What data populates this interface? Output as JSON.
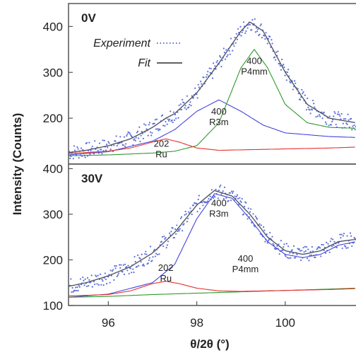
{
  "chart_data": {
    "type": "line",
    "xlabel": "θ/2θ (°)",
    "ylabel": "Intensity (Counts)",
    "xlim": [
      95.1,
      101.6
    ],
    "xticks": [
      96,
      98,
      100
    ],
    "legend": {
      "placement": "top-left",
      "entries": [
        {
          "label": "Experiment",
          "style": "dotted",
          "color": "#5a6fd6"
        },
        {
          "label": "Fit",
          "style": "solid",
          "color": "#000000"
        }
      ]
    },
    "panels": [
      {
        "label": "0V",
        "ylim": [
          100,
          450
        ],
        "yticks": [
          200,
          300,
          400
        ],
        "annotations": [
          {
            "lines": [
              "400",
              "P4mm"
            ],
            "x": 99.3,
            "y": 318
          },
          {
            "lines": [
              "400",
              "R3m"
            ],
            "x": 98.5,
            "y": 208
          },
          {
            "lines": [
              "202",
              "Ru"
            ],
            "x": 97.2,
            "y": 138
          }
        ],
        "series": [
          {
            "name": "Experiment",
            "color": "#5a6fd6",
            "style": "dots",
            "x": [
              95.1,
              95.5,
              96.0,
              96.5,
              97.0,
              97.3,
              97.5,
              98.0,
              98.5,
              99.0,
              99.2,
              99.5,
              100.0,
              100.5,
              101.0,
              101.6
            ],
            "y": [
              125,
              130,
              140,
              155,
              180,
              200,
              210,
              255,
              320,
              390,
              410,
              390,
              300,
              230,
              200,
              190
            ]
          },
          {
            "name": "Fit",
            "color": "#555566",
            "style": "solid",
            "x": [
              95.1,
              95.5,
              96.0,
              96.5,
              97.0,
              97.3,
              97.5,
              98.0,
              98.5,
              99.0,
              99.2,
              99.5,
              100.0,
              100.5,
              101.0,
              101.6
            ],
            "y": [
              125,
              130,
              140,
              155,
              180,
              200,
              210,
              255,
              320,
              390,
              410,
              390,
              300,
              230,
              200,
              190
            ]
          },
          {
            "color": "#4444dd",
            "style": "solid",
            "x": [
              95.1,
              96.0,
              97.0,
              97.5,
              98.0,
              98.5,
              99.0,
              99.5,
              100.0,
              101.0,
              101.6
            ],
            "y": [
              120,
              127,
              150,
              175,
              215,
              240,
              215,
              185,
              168,
              160,
              158
            ]
          },
          {
            "color": "#2e9a2e",
            "style": "solid",
            "x": [
              95.1,
              96.0,
              97.0,
              97.5,
              98.0,
              98.5,
              99.0,
              99.3,
              99.6,
              100.0,
              100.5,
              101.0,
              101.6
            ],
            "y": [
              118,
              120,
              124,
              128,
              140,
              190,
              310,
              350,
              310,
              230,
              190,
              180,
              178
            ]
          },
          {
            "color": "#e83030",
            "style": "solid",
            "x": [
              95.1,
              96.0,
              96.5,
              97.0,
              97.3,
              97.6,
              98.0,
              98.5,
              99.0,
              100.0,
              101.0,
              101.6
            ],
            "y": [
              123,
              128,
              135,
              148,
              155,
              148,
              135,
              130,
              131,
              133,
              135,
              137
            ]
          }
        ]
      },
      {
        "label": "30V",
        "ylim": [
          100,
          410
        ],
        "yticks": [
          100,
          200,
          300,
          400
        ],
        "annotations": [
          {
            "lines": [
              "400",
              "R3m"
            ],
            "x": 98.5,
            "y": 318
          },
          {
            "lines": [
              "202",
              "Ru"
            ],
            "x": 97.3,
            "y": 176
          },
          {
            "lines": [
              "400",
              "P4mm"
            ],
            "x": 99.1,
            "y": 196
          }
        ],
        "series": [
          {
            "name": "Experiment",
            "color": "#5a6fd6",
            "style": "dots",
            "x": [
              95.1,
              95.5,
              96.0,
              96.5,
              97.0,
              97.5,
              98.0,
              98.4,
              98.8,
              99.2,
              99.6,
              100.0,
              100.4,
              100.8,
              101.2,
              101.6
            ],
            "y": [
              142,
              150,
              165,
              185,
              215,
              260,
              320,
              352,
              340,
              300,
              250,
              220,
              212,
              220,
              240,
              245
            ]
          },
          {
            "name": "Fit",
            "color": "#555566",
            "style": "solid",
            "x": [
              95.1,
              95.5,
              96.0,
              96.5,
              97.0,
              97.5,
              98.0,
              98.4,
              98.8,
              99.2,
              99.6,
              100.0,
              100.4,
              100.8,
              101.2,
              101.6
            ],
            "y": [
              142,
              150,
              165,
              185,
              215,
              260,
              320,
              352,
              340,
              300,
              250,
              220,
              212,
              220,
              240,
              245
            ]
          },
          {
            "color": "#4444dd",
            "style": "solid",
            "x": [
              95.1,
              96.0,
              97.0,
              97.5,
              98.0,
              98.4,
              98.8,
              99.2,
              99.6,
              100.0,
              100.4,
              100.8,
              101.2,
              101.6
            ],
            "y": [
              118,
              125,
              150,
              190,
              290,
              345,
              335,
              290,
              240,
              212,
              205,
              212,
              232,
              240
            ]
          },
          {
            "color": "#2e9a2e",
            "style": "solid",
            "x": [
              95.1,
              96.0,
              97.0,
              98.0,
              99.0,
              100.0,
              101.0,
              101.6
            ],
            "y": [
              118,
              120,
              124,
              127,
              130,
              133,
              136,
              138
            ]
          },
          {
            "color": "#e83030",
            "style": "solid",
            "x": [
              95.1,
              96.0,
              96.5,
              97.0,
              97.3,
              97.6,
              98.0,
              98.5,
              99.0,
              100.0,
              101.0,
              101.6
            ],
            "y": [
              121,
              124,
              132,
              148,
              153,
              148,
              138,
              132,
              131,
              133,
              135,
              137
            ]
          }
        ]
      }
    ]
  }
}
